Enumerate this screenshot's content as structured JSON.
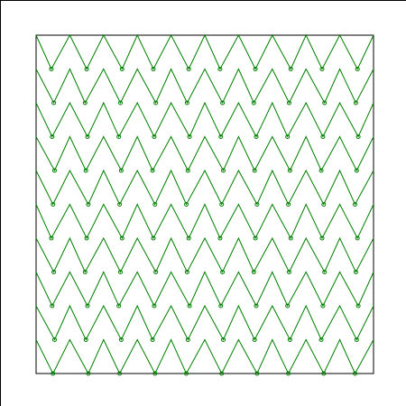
{
  "colors": {
    "background": "#ffffff",
    "frame": "#000000",
    "line": "#008000",
    "marker": "#008000"
  },
  "pattern": {
    "rows": 10,
    "valleys_per_row": 10,
    "shape": "zigzag",
    "marker": "circle"
  }
}
